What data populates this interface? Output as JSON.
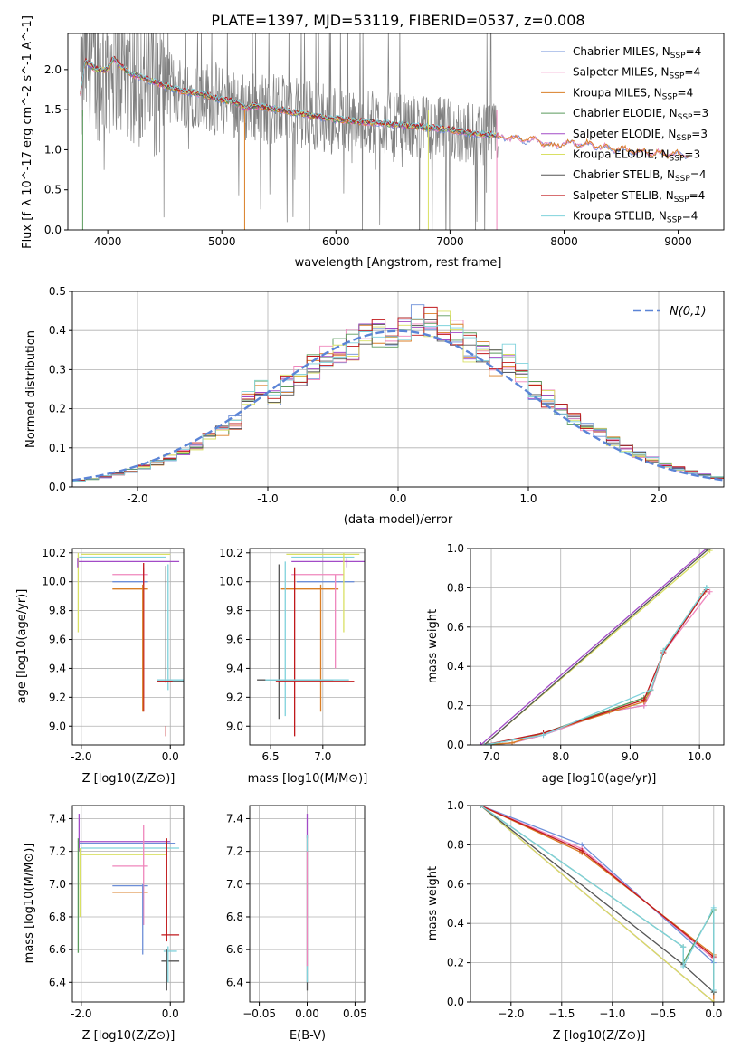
{
  "figure": {
    "title": "PLATE=1397, MJD=53119, FIBERID=0537, z=0.008"
  },
  "models": [
    {
      "name": "Chabrier MILES",
      "nssp": "4",
      "color": "#6d8fd8"
    },
    {
      "name": "Salpeter MILES",
      "nssp": "4",
      "color": "#ef86bc"
    },
    {
      "name": "Kroupa MILES",
      "nssp": "4",
      "color": "#d97f27"
    },
    {
      "name": "Chabrier ELODIE",
      "nssp": "3",
      "color": "#5a9a5c"
    },
    {
      "name": "Salpeter ELODIE",
      "nssp": "3",
      "color": "#a24bc7"
    },
    {
      "name": "Kroupa ELODIE",
      "nssp": "3",
      "color": "#d9e063"
    },
    {
      "name": "Chabrier STELIB",
      "nssp": "4",
      "color": "#555555"
    },
    {
      "name": "Salpeter STELIB",
      "nssp": "4",
      "color": "#c0191c"
    },
    {
      "name": "Kroupa STELIB",
      "nssp": "4",
      "color": "#7fd2dc"
    }
  ],
  "chart_data": [
    {
      "id": "spectrum",
      "type": "line",
      "xlabel": "wavelength [Angstrom, rest frame]",
      "ylabel": "Flux [f_λ 10^-17 erg cm^-2 s^-1 A^-1]",
      "xlim": [
        3650,
        9400
      ],
      "ylim": [
        0,
        2.45
      ],
      "xticks": [
        4000,
        5000,
        6000,
        7000,
        8000,
        9000
      ],
      "yticks": [
        0.0,
        0.5,
        1.0,
        1.5,
        2.0
      ],
      "legend": "top-right",
      "data_color": "#808080",
      "model_curve": {
        "x": [
          3760,
          3800,
          3900,
          4000,
          4050,
          4100,
          4200,
          4300,
          4400,
          4500,
          4600,
          4700,
          4800,
          4900,
          5000,
          5100,
          5200,
          5300,
          5400,
          5500,
          5600,
          5700,
          5800,
          5900,
          6000,
          6200,
          6400,
          6600,
          6800,
          7000,
          7200,
          7400,
          7600,
          7800,
          7900,
          8000,
          8200,
          8400,
          8600,
          8800,
          9000,
          9100
        ],
        "y": [
          1.7,
          2.1,
          2.0,
          2.0,
          2.15,
          2.05,
          1.95,
          1.9,
          1.85,
          1.8,
          1.75,
          1.72,
          1.7,
          1.66,
          1.62,
          1.6,
          1.52,
          1.55,
          1.52,
          1.5,
          1.47,
          1.45,
          1.42,
          1.4,
          1.38,
          1.35,
          1.33,
          1.3,
          1.28,
          1.25,
          1.2,
          1.18,
          1.15,
          1.12,
          1.05,
          1.1,
          1.08,
          1.03,
          1.0,
          0.97,
          0.95,
          0.95
        ]
      }
    },
    {
      "id": "residuals",
      "type": "step",
      "xlabel": "(data-model)/error",
      "ylabel": "Normed distribution",
      "xlim": [
        -2.5,
        2.5
      ],
      "ylim": [
        0,
        0.5
      ],
      "xticks": [
        -2,
        -1,
        0,
        1,
        2
      ],
      "yticks": [
        0.0,
        0.1,
        0.2,
        0.3,
        0.4,
        0.5
      ],
      "grid": true,
      "legend_label": "N(0,1)",
      "gauss_color": "#5b84d6"
    },
    {
      "id": "age_vs_Z",
      "type": "errorbar",
      "xlabel": "Z [log10(Z/Z⊙)]",
      "ylabel": "age [log10(age/yr)]",
      "xlim": [
        -2.2,
        0.3
      ],
      "ylim": [
        8.87,
        10.23
      ],
      "xticks": [
        -2,
        0
      ],
      "yticks": [
        9.0,
        9.2,
        9.4,
        9.6,
        9.8,
        10.0,
        10.2
      ],
      "grid": true
    },
    {
      "id": "age_vs_mass",
      "type": "errorbar",
      "xlabel": "mass [log10(M/M⊙)]",
      "xlim": [
        6.3,
        7.4
      ],
      "ylim": [
        8.87,
        10.23
      ],
      "xticks": [
        6.5,
        7.0
      ],
      "yticks": [
        9.0,
        9.2,
        9.4,
        9.6,
        9.8,
        10.0,
        10.2
      ],
      "grid": true
    },
    {
      "id": "weight_vs_age",
      "type": "line",
      "xlabel": "age [log10(age/yr)]",
      "ylabel": "mass weight",
      "xlim": [
        6.7,
        10.35
      ],
      "ylim": [
        0,
        1.0
      ],
      "xticks": [
        7,
        8,
        9,
        10
      ],
      "yticks": [
        0.0,
        0.2,
        0.4,
        0.6,
        0.8,
        1.0
      ],
      "grid": true
    },
    {
      "id": "mass_vs_Z",
      "type": "errorbar",
      "xlabel": "Z [log10(Z/Z⊙)]",
      "ylabel": "mass [log10(M/M⊙)]",
      "xlim": [
        -2.2,
        0.3
      ],
      "ylim": [
        6.28,
        7.48
      ],
      "xticks": [
        -2,
        0
      ],
      "yticks": [
        6.4,
        6.6,
        6.8,
        7.0,
        7.2,
        7.4
      ],
      "grid": true
    },
    {
      "id": "mass_vs_EBV",
      "type": "errorbar",
      "xlabel": "E(B-V)",
      "xlim": [
        -0.06,
        0.06
      ],
      "ylim": [
        6.28,
        7.48
      ],
      "xticks": [
        -0.05,
        0.0,
        0.05
      ],
      "xtick_labels": [
        "−0.05",
        "0.00",
        "0.05"
      ],
      "yticks": [
        6.4,
        6.6,
        6.8,
        7.0,
        7.2,
        7.4
      ],
      "grid": true
    },
    {
      "id": "weight_vs_Z",
      "type": "line",
      "xlabel": "Z [log10(Z/Z⊙)]",
      "ylabel": "mass weight",
      "xlim": [
        -2.4,
        0.1
      ],
      "ylim": [
        0,
        1.0
      ],
      "xticks": [
        -2.0,
        -1.5,
        -1.0,
        -0.5,
        0.0
      ],
      "xtick_labels": [
        "−2.0",
        "−1.5",
        "−1.0",
        "−0.5",
        "0.0"
      ],
      "yticks": [
        0.0,
        0.2,
        0.4,
        0.6,
        0.8,
        1.0
      ],
      "grid": true
    }
  ]
}
